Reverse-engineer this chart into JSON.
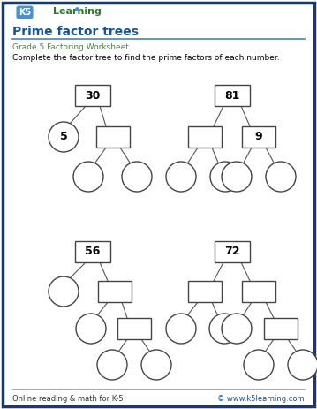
{
  "title": "Prime factor trees",
  "subtitle": "Grade 5 Factoring Worksheet",
  "instruction": "Complete the factor tree to find the prime factors of each number.",
  "footer_left": "Online reading & math for K-5",
  "footer_right": "© www.k5learning.com",
  "title_color": "#1a5296",
  "subtitle_color": "#4a8a3a",
  "footer_link_color": "#1a5296",
  "border_color": "#1a3a6a",
  "background_color": "#ffffff",
  "tree_line_color": "#555555",
  "box_color": "#444444",
  "circle_color": "#444444",
  "logo_k5_bg": "#4a90d9",
  "logo_learning_color": "#2a7a2a",
  "separator_color": "#4a80c8",
  "footer_line_color": "#aaaaaa"
}
